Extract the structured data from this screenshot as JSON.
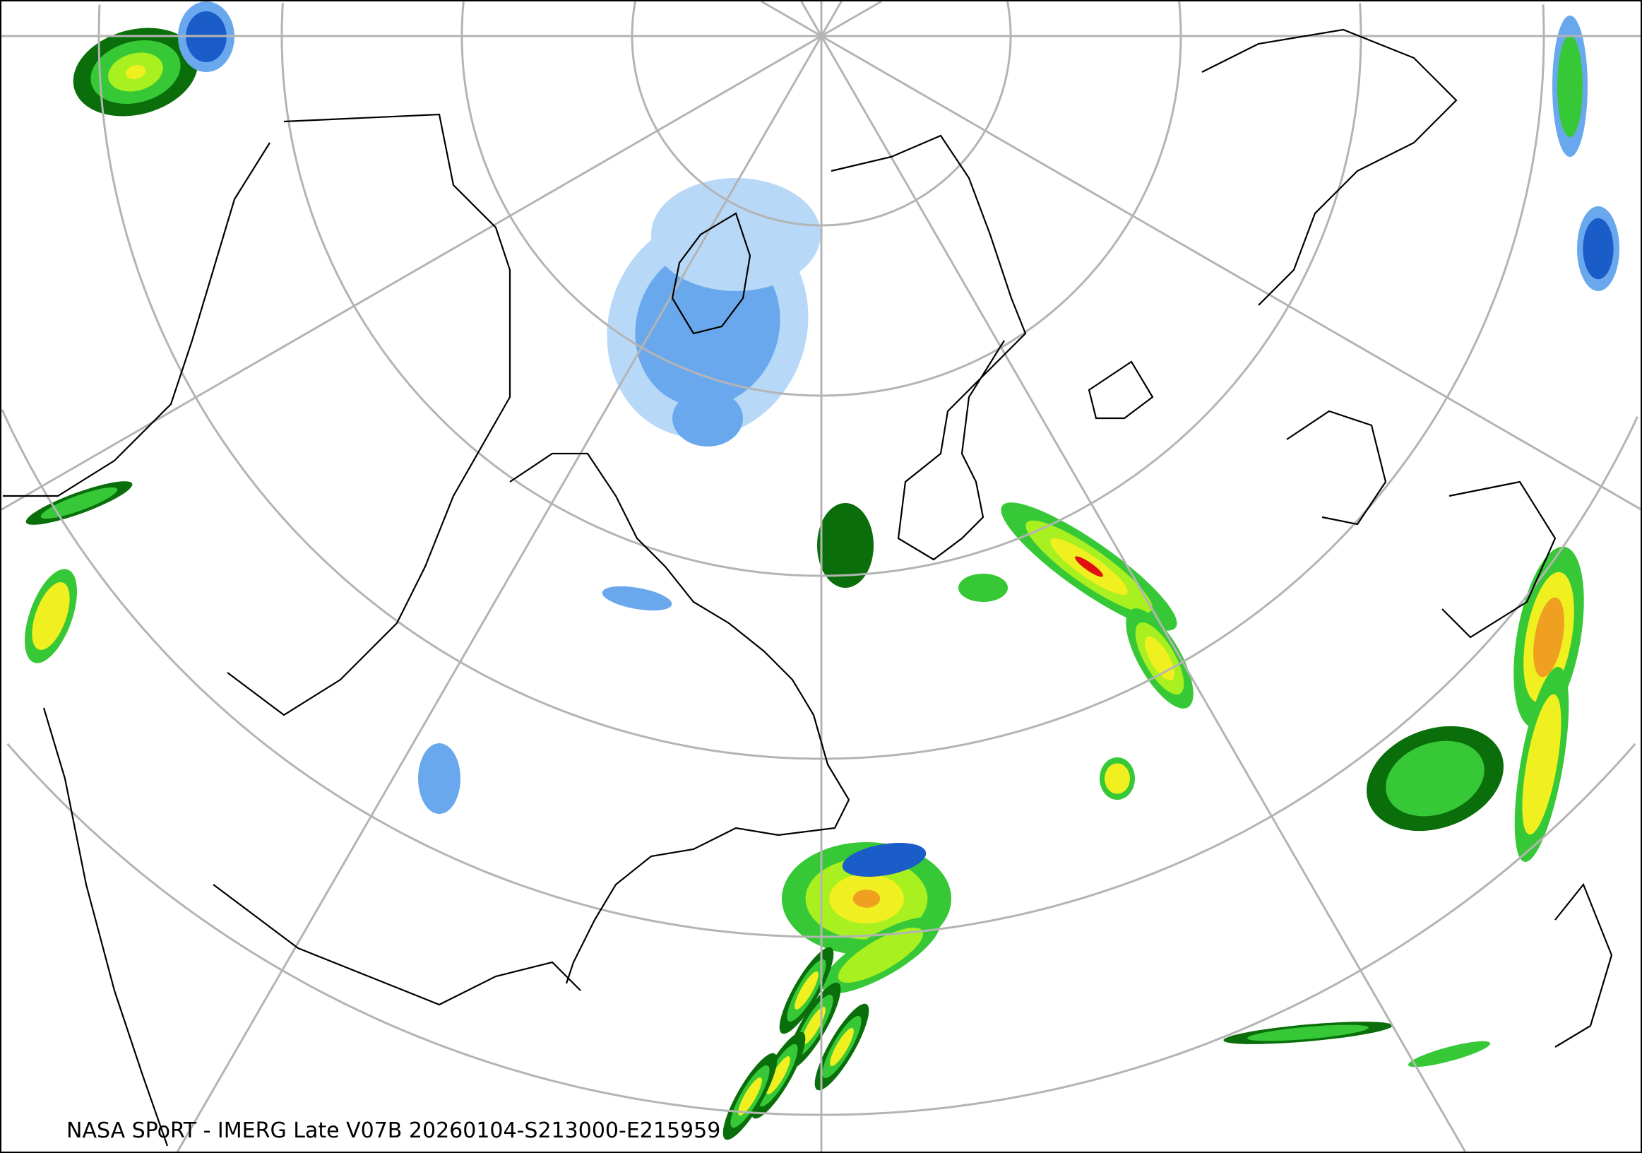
{
  "caption": "NASA SPoRT - IMERG Late V07B 20260104-S213000-E215959",
  "map": {
    "projection": "polar stereographic (north)",
    "graticule_color": "#b4b4b4",
    "coastline_color": "#000000",
    "precip_colors": {
      "snow_light": "#b8d8f8",
      "snow_mid": "#6aa8ee",
      "snow_heavy": "#1a5cc8",
      "snow_extreme": "#e040c0",
      "rain_dark": "#0a6e0a",
      "rain_light": "#36c836",
      "rain_mid": "#a8f020",
      "rain_yellow": "#f0f020",
      "rain_orange": "#f0a020",
      "rain_heavy": "#e01010"
    }
  }
}
